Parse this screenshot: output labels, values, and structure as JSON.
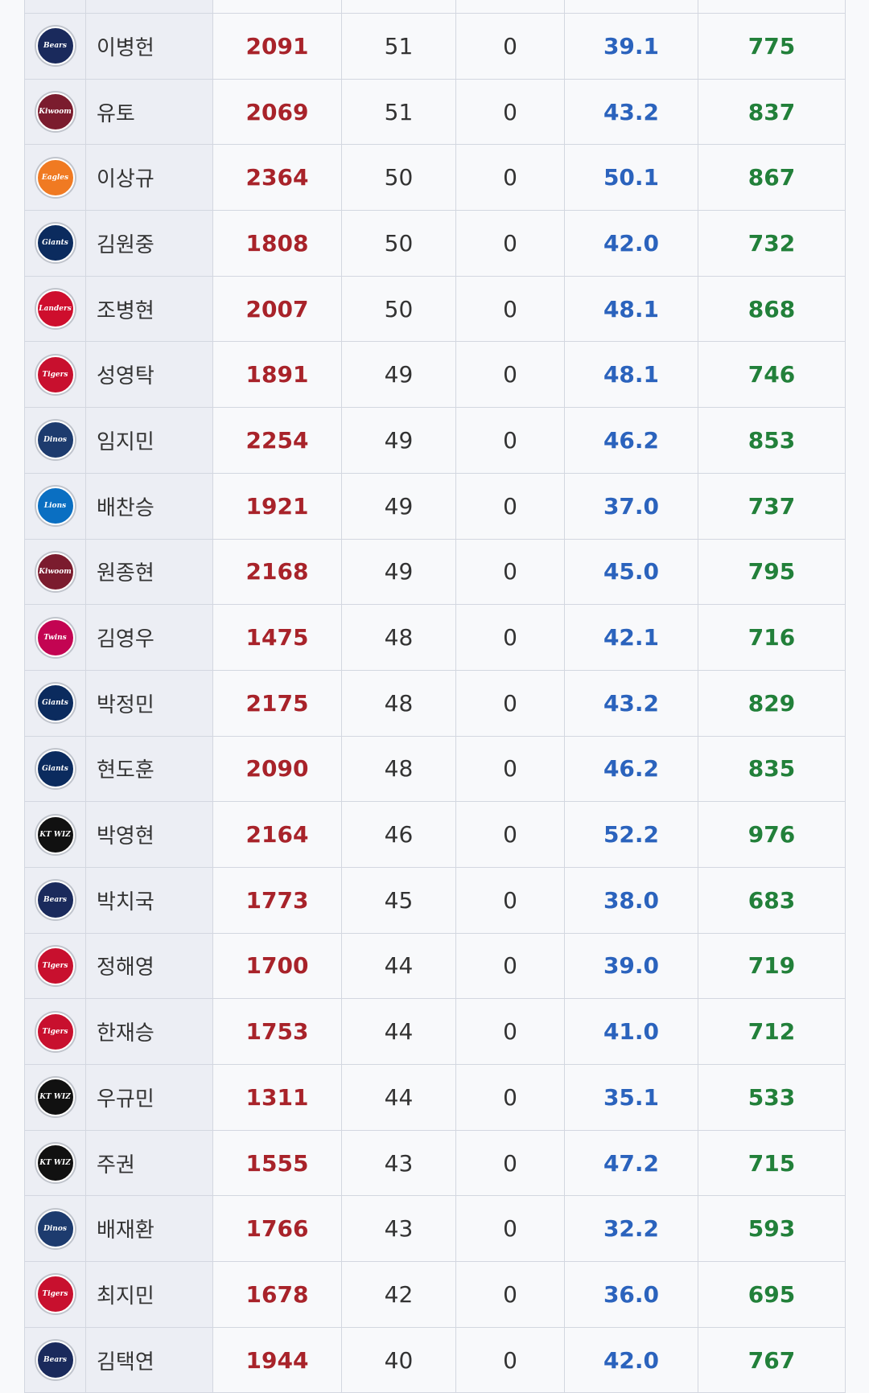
{
  "table": {
    "rows": [
      [
        "Bears",
        "이병헌",
        "2091",
        "51",
        "0",
        "39.1",
        "775"
      ],
      [
        "Kiwoom",
        "유토",
        "2069",
        "51",
        "0",
        "43.2",
        "837"
      ],
      [
        "Eagles",
        "이상규",
        "2364",
        "50",
        "0",
        "50.1",
        "867"
      ],
      [
        "Giants",
        "김원중",
        "1808",
        "50",
        "0",
        "42.0",
        "732"
      ],
      [
        "Landers",
        "조병현",
        "2007",
        "50",
        "0",
        "48.1",
        "868"
      ],
      [
        "Tigers",
        "성영탁",
        "1891",
        "49",
        "0",
        "48.1",
        "746"
      ],
      [
        "Dinos",
        "임지민",
        "2254",
        "49",
        "0",
        "46.2",
        "853"
      ],
      [
        "Lions",
        "배찬승",
        "1921",
        "49",
        "0",
        "37.0",
        "737"
      ],
      [
        "Kiwoom",
        "원종현",
        "2168",
        "49",
        "0",
        "45.0",
        "795"
      ],
      [
        "Twins",
        "김영우",
        "1475",
        "48",
        "0",
        "42.1",
        "716"
      ],
      [
        "Giants",
        "박정민",
        "2175",
        "48",
        "0",
        "43.2",
        "829"
      ],
      [
        "Giants",
        "현도훈",
        "2090",
        "48",
        "0",
        "46.2",
        "835"
      ],
      [
        "KT WIZ",
        "박영현",
        "2164",
        "46",
        "0",
        "52.2",
        "976"
      ],
      [
        "Bears",
        "박치국",
        "1773",
        "45",
        "0",
        "38.0",
        "683"
      ],
      [
        "Tigers",
        "정해영",
        "1700",
        "44",
        "0",
        "39.0",
        "719"
      ],
      [
        "Tigers",
        "한재승",
        "1753",
        "44",
        "0",
        "41.0",
        "712"
      ],
      [
        "KT WIZ",
        "우규민",
        "1311",
        "44",
        "0",
        "35.1",
        "533"
      ],
      [
        "KT WIZ",
        "주권",
        "1555",
        "43",
        "0",
        "47.2",
        "715"
      ],
      [
        "Dinos",
        "배재환",
        "1766",
        "43",
        "0",
        "32.2",
        "593"
      ],
      [
        "Tigers",
        "최지민",
        "1678",
        "42",
        "0",
        "36.0",
        "695"
      ],
      [
        "Bears",
        "김택연",
        "1944",
        "40",
        "0",
        "42.0",
        "767"
      ]
    ]
  }
}
